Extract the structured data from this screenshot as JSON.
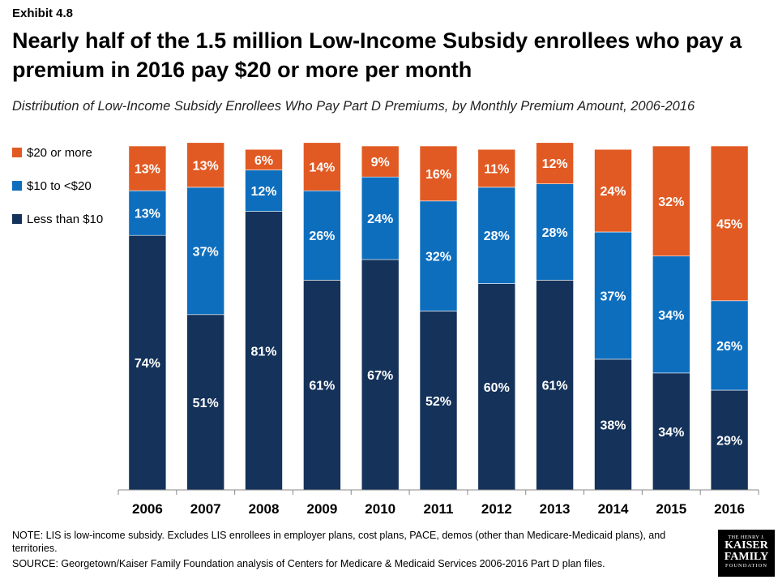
{
  "header": {
    "exhibit": "Exhibit 4.8",
    "title": "Nearly half of the 1.5 million Low-Income Subsidy enrollees who pay a premium in 2016 pay $20 or more per month",
    "subtitle": "Distribution of Low-Income Subsidy Enrollees Who Pay Part D Premiums, by Monthly Premium Amount, 2006-2016"
  },
  "colors": {
    "less_than_10": "#14325a",
    "ten_to_20": "#0e6ebe",
    "twenty_or_more": "#e15a23"
  },
  "chart_data": {
    "type": "bar",
    "stacked": true,
    "categories": [
      "2006",
      "2007",
      "2008",
      "2009",
      "2010",
      "2011",
      "2012",
      "2013",
      "2014",
      "2015",
      "2016"
    ],
    "series": [
      {
        "name": "Less than $10",
        "values": [
          74,
          51,
          81,
          61,
          67,
          52,
          60,
          61,
          38,
          34,
          29
        ],
        "labels": [
          "74%",
          "51%",
          "81%",
          "61%",
          "67%",
          "52%",
          "60%",
          "61%",
          "38%",
          "34%",
          "29%"
        ]
      },
      {
        "name": "$10 to <$20",
        "values": [
          13,
          37,
          12,
          26,
          24,
          32,
          28,
          28,
          37,
          34,
          26
        ],
        "labels": [
          "13%",
          "37%",
          "12%",
          "26%",
          "24%",
          "32%",
          "28%",
          "28%",
          "37%",
          "34%",
          "26%"
        ]
      },
      {
        "name": "$20 or more",
        "values": [
          13,
          13,
          6,
          14,
          9,
          16,
          11,
          12,
          24,
          32,
          45
        ],
        "labels": [
          "13%",
          "13%",
          "6%",
          "14%",
          "9%",
          "16%",
          "11%",
          "12%",
          "24%",
          "32%",
          "45%"
        ]
      }
    ],
    "ylim": [
      0,
      100
    ],
    "legend_position": "left",
    "grid": false
  },
  "legend": {
    "items": [
      "$20 or more",
      "$10 to <$20",
      "Less than $10"
    ]
  },
  "footer": {
    "note": "NOTE: LIS is low-income subsidy. Excludes LIS enrollees in employer plans, cost plans, PACE, demos (other than Medicare-Medicaid plans), and territories.",
    "source": "SOURCE: Georgetown/Kaiser Family Foundation analysis of Centers for Medicare & Medicaid Services 2006-2016 Part D plan files."
  },
  "logo": {
    "line1": "THE HENRY J.",
    "line2": "KAISER",
    "line3": "FAMILY",
    "line4": "FOUNDATION"
  }
}
